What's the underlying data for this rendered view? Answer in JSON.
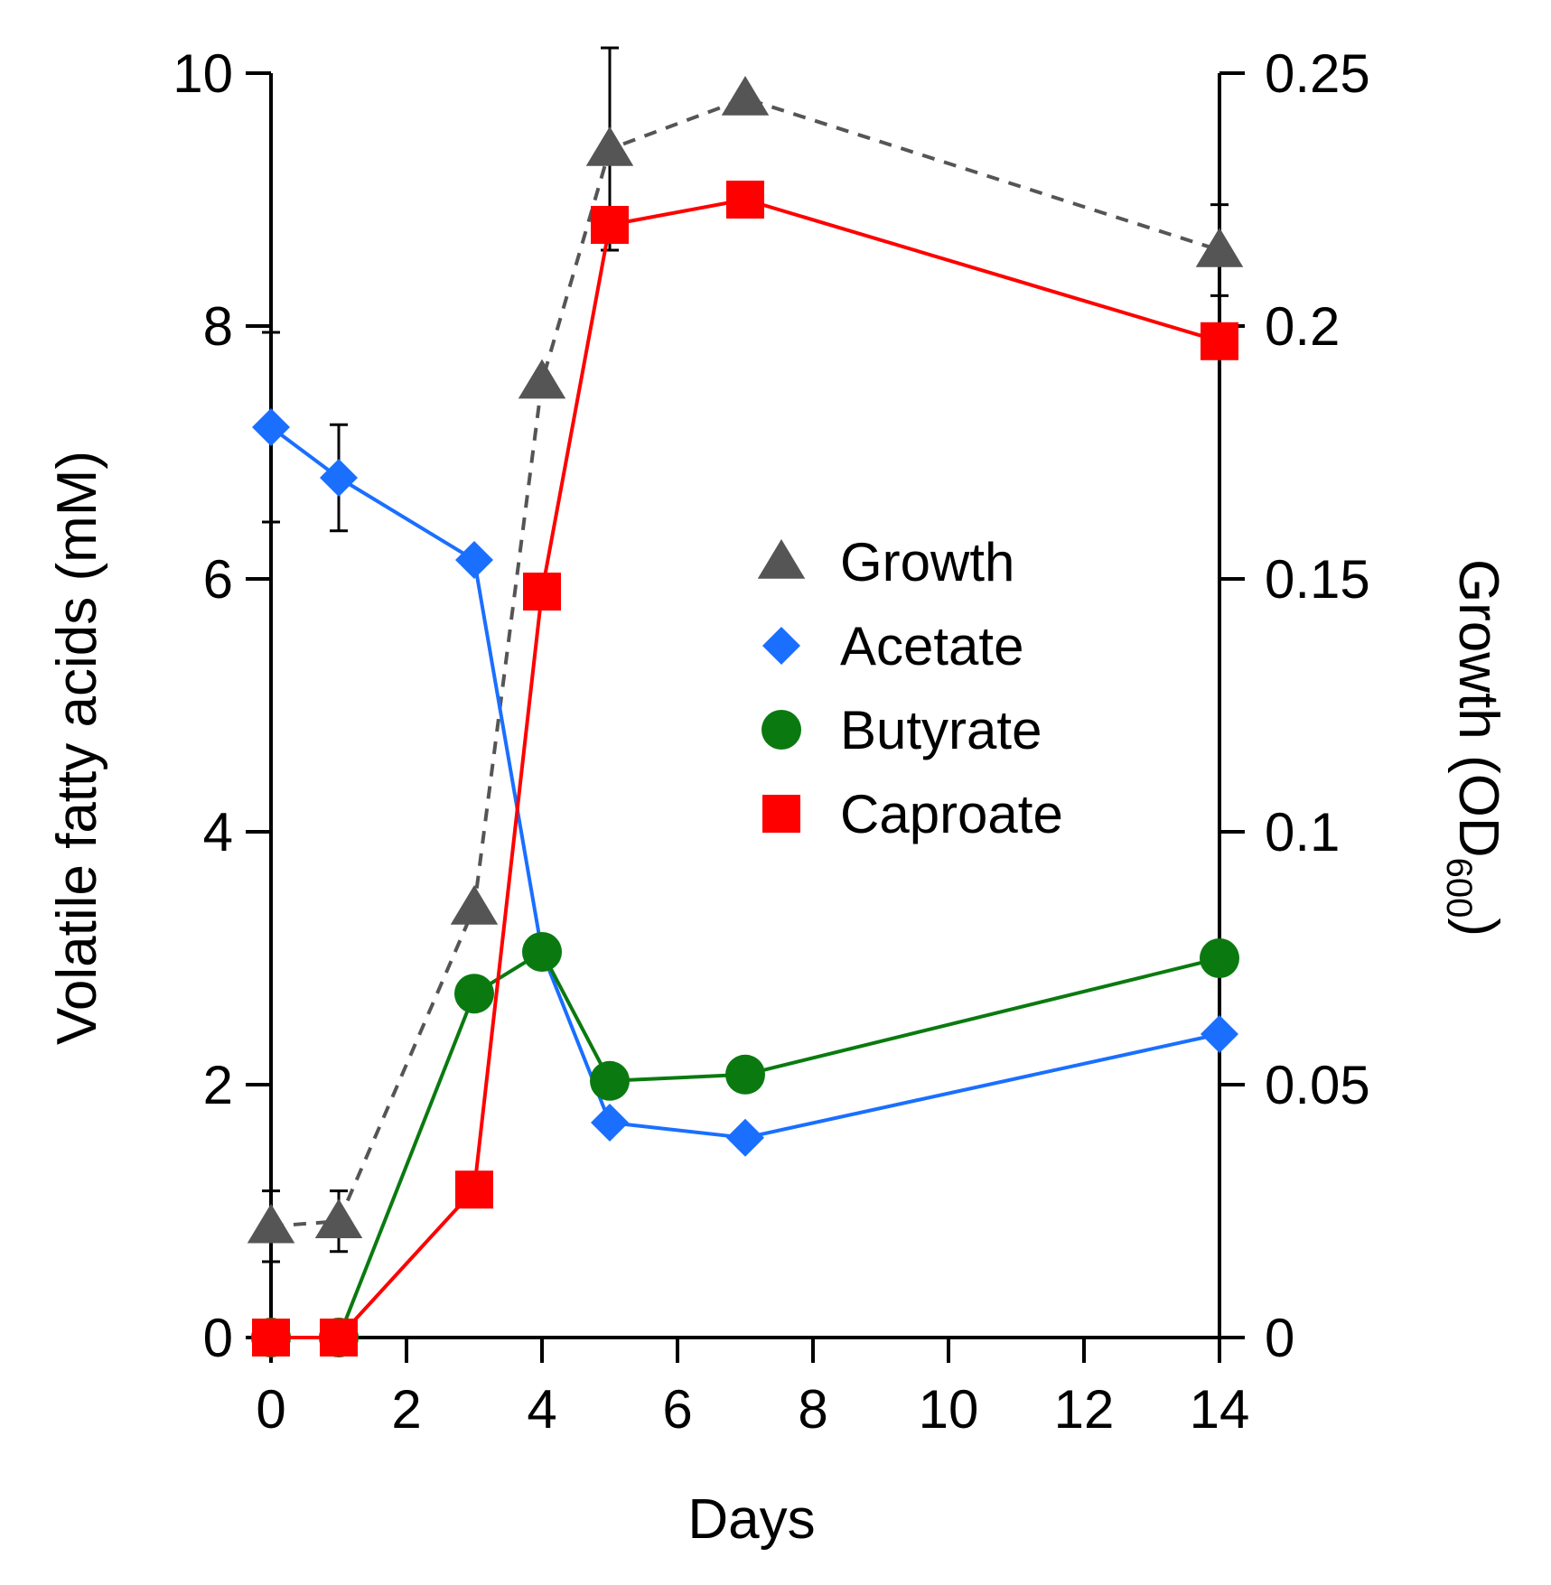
{
  "chart_data": {
    "type": "line",
    "xlabel": "Days",
    "ylabel_left": "Volatile fatty acids (mM)",
    "ylabel_right": {
      "main": "Growth (OD",
      "sub": "600",
      "close": ")"
    },
    "x_ticks": [
      "0",
      "2",
      "4",
      "6",
      "8",
      "10",
      "12",
      "14"
    ],
    "y_left_ticks": [
      "0",
      "2",
      "4",
      "6",
      "8",
      "10"
    ],
    "y_right_ticks": [
      "0",
      "0.05",
      "0.1",
      "0.15",
      "0.2",
      "0.25"
    ],
    "xlim": [
      0,
      14
    ],
    "ylim_left": [
      0,
      10
    ],
    "ylim_right": [
      0,
      0.25
    ],
    "legend_position": "center-right",
    "series": [
      {
        "name": "Growth",
        "axis": "right",
        "marker": "triangle",
        "line_style": "dashed",
        "color": "#555555",
        "x": [
          0,
          1,
          3,
          4,
          5,
          7,
          14
        ],
        "y": [
          0.022,
          0.023,
          0.085,
          0.189,
          0.235,
          0.245,
          0.215
        ],
        "error": [
          0.007,
          0.006,
          0,
          0,
          0.02,
          0,
          0.009
        ]
      },
      {
        "name": "Acetate",
        "axis": "left",
        "marker": "diamond",
        "line_style": "solid",
        "color": "#1a6fff",
        "x": [
          0,
          1,
          3,
          4,
          5,
          7,
          14
        ],
        "y": [
          7.2,
          6.8,
          6.15,
          3.05,
          1.7,
          1.58,
          2.4
        ],
        "error": [
          0.75,
          0.42,
          0,
          0,
          0,
          0,
          0
        ]
      },
      {
        "name": "Butyrate",
        "axis": "left",
        "marker": "circle",
        "line_style": "solid",
        "color": "#0a7a10",
        "x": [
          0,
          1,
          3,
          4,
          5,
          7,
          14
        ],
        "y": [
          0,
          0,
          2.72,
          3.05,
          2.03,
          2.08,
          3.0
        ],
        "error": [
          0,
          0,
          0,
          0,
          0,
          0,
          0
        ]
      },
      {
        "name": "Caproate",
        "axis": "left",
        "marker": "square",
        "line_style": "solid",
        "color": "#ff0000",
        "x": [
          0,
          1,
          3,
          4,
          5,
          7,
          14
        ],
        "y": [
          0,
          0,
          1.17,
          5.9,
          8.8,
          9.0,
          7.88
        ],
        "error": [
          0,
          0,
          0,
          0,
          0,
          0,
          0
        ]
      }
    ]
  }
}
